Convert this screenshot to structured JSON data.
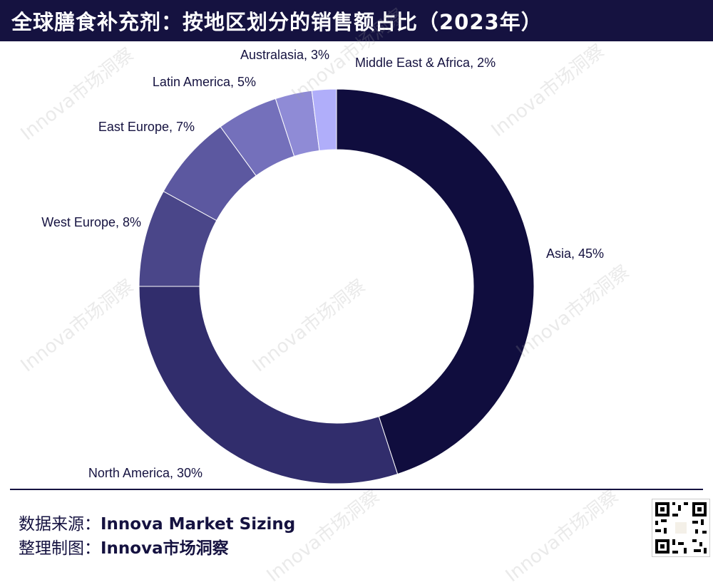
{
  "title": "全球膳食补充剂：按地区划分的销售额占比（2023年）",
  "watermark_text": "Innova市场洞察",
  "footer": {
    "source_label": "数据来源：",
    "source_value": "Innova Market Sizing",
    "made_label": "整理制图：",
    "made_value": "Innova市场洞察"
  },
  "chart_data": {
    "type": "pie",
    "style": "donut",
    "start": "top",
    "direction": "clockwise",
    "slices": [
      {
        "label": "Asia, 45%",
        "value": 45,
        "color": "#100d3e"
      },
      {
        "label": "North America, 30%",
        "value": 30,
        "color": "#312d6c"
      },
      {
        "label": "West Europe, 8%",
        "value": 8,
        "color": "#4a4689"
      },
      {
        "label": "East Europe, 7%",
        "value": 7,
        "color": "#5c58a0"
      },
      {
        "label": "Latin America, 5%",
        "value": 5,
        "color": "#7470bb"
      },
      {
        "label": "Australasia, 3%",
        "value": 3,
        "color": "#8f8bd6"
      },
      {
        "label": "Middle East & Africa, 2%",
        "value": 2,
        "color": "#b0aefa"
      }
    ]
  }
}
